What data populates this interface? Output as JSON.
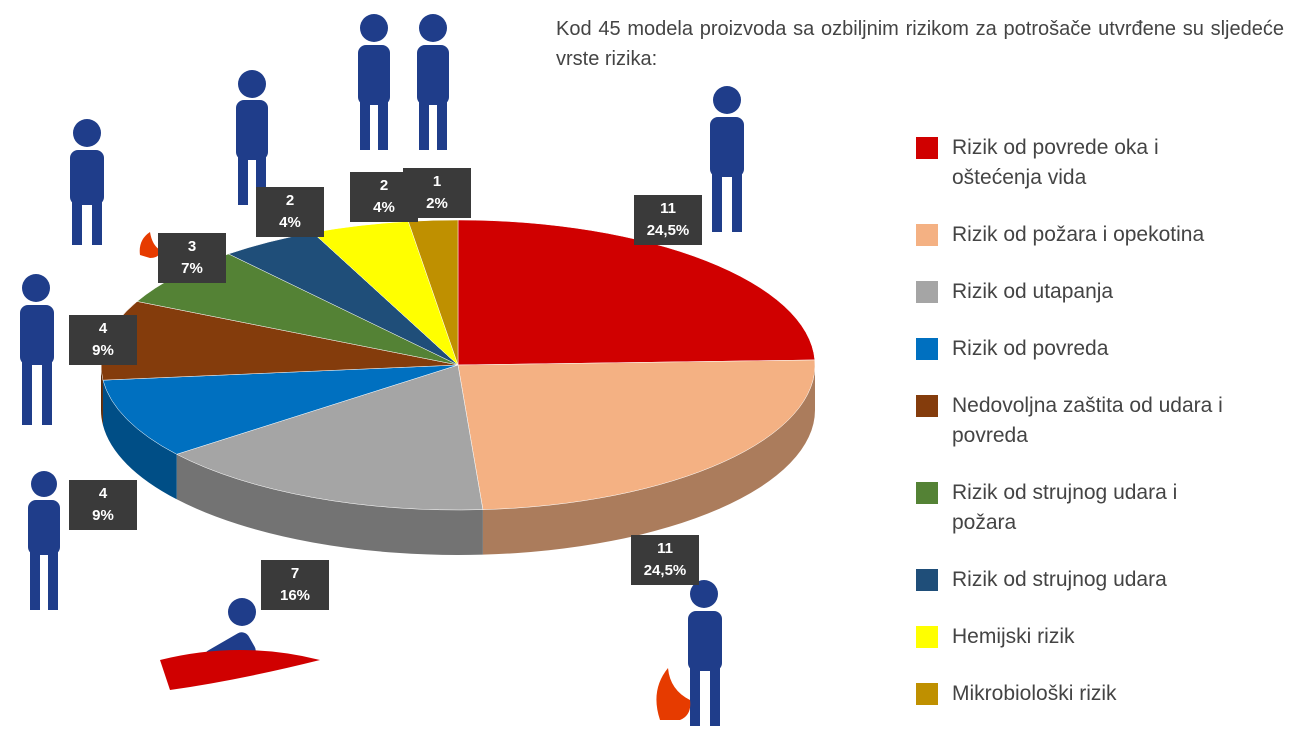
{
  "chart_data": {
    "type": "pie3d",
    "title": "Kod 45 modela proizvoda sa ozbiljnim rizikom za potrošače utvrđene su sljedeće vrste rizika:",
    "categories": [
      "Rizik od povrede oka i oštećenja vida",
      "Rizik od požara i opekotina",
      "Rizik od utapanja",
      "Rizik od povreda",
      "Nedovoljna zaštita od udara i povreda",
      "Rizik od strujnog udara i požara",
      "Rizik od strujnog udara",
      "Hemijski rizik",
      "Mikrobiološki rizik"
    ],
    "values": [
      11,
      11,
      7,
      4,
      4,
      3,
      2,
      2,
      1
    ],
    "percentages": [
      24.5,
      24.5,
      16,
      9,
      9,
      7,
      4,
      4,
      2
    ],
    "percentage_labels": [
      "24,5%",
      "24,5%",
      "16%",
      "9%",
      "9%",
      "7%",
      "4%",
      "4%",
      "2%"
    ],
    "colors": [
      "#d00000",
      "#f4b183",
      "#a5a5a5",
      "#0070c0",
      "#843c0c",
      "#548235",
      "#1f4e79",
      "#ffff00",
      "#bf9000"
    ]
  }
}
